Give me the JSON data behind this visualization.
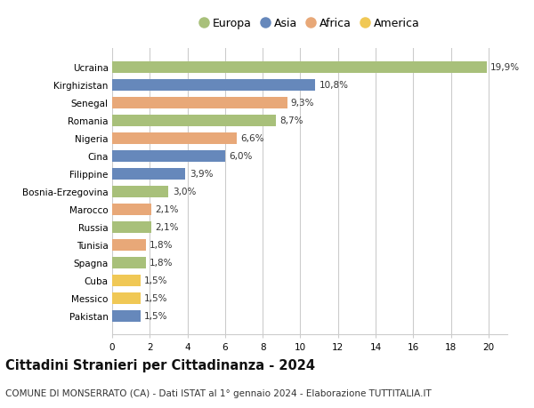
{
  "categories": [
    "Ucraina",
    "Kirghizistan",
    "Senegal",
    "Romania",
    "Nigeria",
    "Cina",
    "Filippine",
    "Bosnia-Erzegovina",
    "Marocco",
    "Russia",
    "Tunisia",
    "Spagna",
    "Cuba",
    "Messico",
    "Pakistan"
  ],
  "values": [
    19.9,
    10.8,
    9.3,
    8.7,
    6.6,
    6.0,
    3.9,
    3.0,
    2.1,
    2.1,
    1.8,
    1.8,
    1.5,
    1.5,
    1.5
  ],
  "labels": [
    "19,9%",
    "10,8%",
    "9,3%",
    "8,7%",
    "6,6%",
    "6,0%",
    "3,9%",
    "3,0%",
    "2,1%",
    "2,1%",
    "1,8%",
    "1,8%",
    "1,5%",
    "1,5%",
    "1,5%"
  ],
  "continents": [
    "Europa",
    "Asia",
    "Africa",
    "Europa",
    "Africa",
    "Asia",
    "Asia",
    "Europa",
    "Africa",
    "Europa",
    "Africa",
    "Europa",
    "America",
    "America",
    "Asia"
  ],
  "continent_colors": {
    "Europa": "#a8c07a",
    "Asia": "#6688bb",
    "Africa": "#e8a878",
    "America": "#f0c855"
  },
  "legend_order": [
    "Europa",
    "Asia",
    "Africa",
    "America"
  ],
  "title": "Cittadini Stranieri per Cittadinanza - 2024",
  "subtitle": "COMUNE DI MONSERRATO (CA) - Dati ISTAT al 1° gennaio 2024 - Elaborazione TUTTITALIA.IT",
  "xlim": [
    0,
    21
  ],
  "xticks": [
    0,
    2,
    4,
    6,
    8,
    10,
    12,
    14,
    16,
    18,
    20
  ],
  "background_color": "#ffffff",
  "grid_color": "#cccccc",
  "bar_height": 0.65,
  "title_fontsize": 10.5,
  "subtitle_fontsize": 7.5,
  "label_fontsize": 7.5,
  "tick_fontsize": 7.5,
  "legend_fontsize": 9
}
